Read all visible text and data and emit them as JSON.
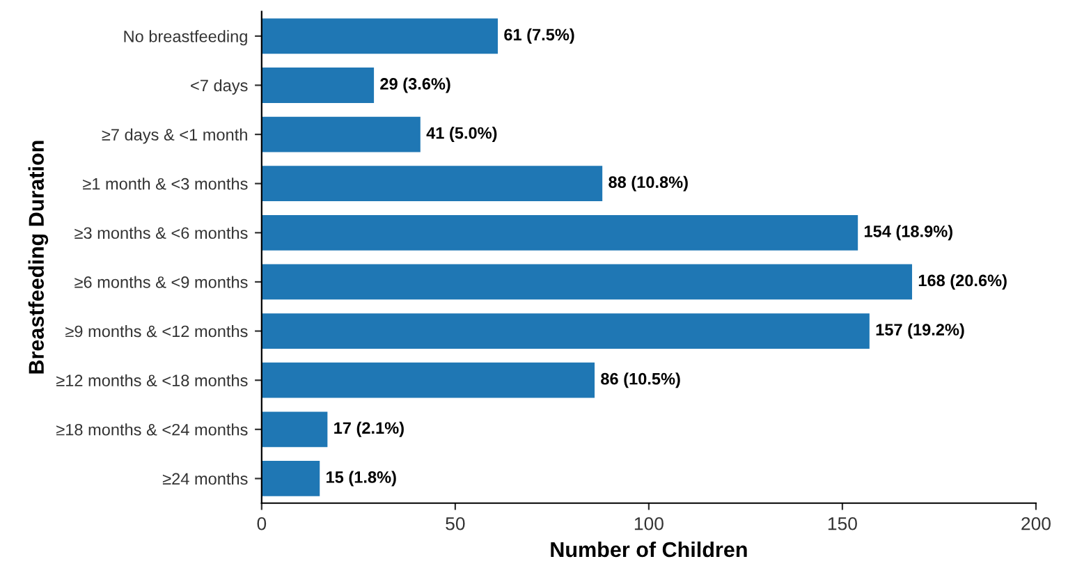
{
  "chart_data": {
    "type": "bar",
    "orientation": "horizontal",
    "xlabel": "Number of Children",
    "ylabel": "Breastfeeding Duration",
    "categories": [
      "No breastfeeding",
      "<7 days",
      "≥7 days & <1 month",
      "≥1 month & <3 months",
      "≥3 months & <6 months",
      "≥6 months & <9 months",
      "≥9 months & <12 months",
      "≥12 months & <18 months",
      "≥18 months & <24 months",
      "≥24 months"
    ],
    "values": [
      61,
      29,
      41,
      88,
      154,
      168,
      157,
      86,
      17,
      15
    ],
    "value_labels": [
      "61 (7.5%)",
      "29 (3.6%)",
      "41 (5.0%)",
      "88 (10.8%)",
      "154 (18.9%)",
      "168 (20.6%)",
      "157 (19.2%)",
      "86 (10.5%)",
      "17 (2.1%)",
      "15 (1.8%)"
    ],
    "color": "#1f77b4",
    "xlim": [
      0,
      200
    ],
    "xticks": [
      0,
      50,
      100,
      150,
      200
    ],
    "grid": false,
    "legend": false
  }
}
